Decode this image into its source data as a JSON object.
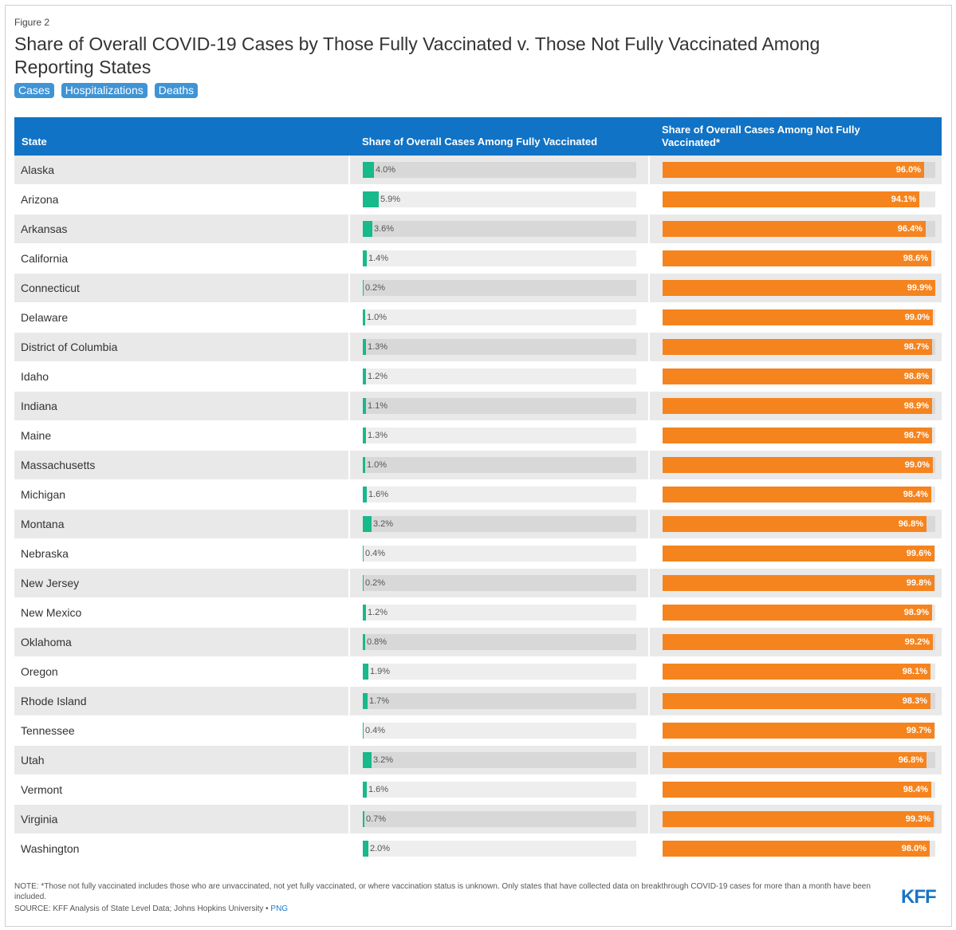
{
  "figure_label": "Figure 2",
  "title": "Share of Overall COVID-19 Cases by Those Fully Vaccinated v. Those Not Fully Vaccinated Among Reporting States",
  "tabs": [
    "Cases",
    "Hospitalizations",
    "Deaths"
  ],
  "colors": {
    "header": "#1173c5",
    "fully": "#18b98a",
    "not_fully": "#f5841f",
    "tab": "#3f94d6"
  },
  "chart_data": {
    "type": "table",
    "columns": [
      "State",
      "Share of Overall Cases Among Fully Vaccinated",
      "Share of Overall Cases Among Not Fully Vaccinated*"
    ],
    "rows": [
      {
        "state": "Alaska",
        "fully": 4.0,
        "fully_label": "4.0%",
        "not": 96.0,
        "not_label": "96.0%"
      },
      {
        "state": "Arizona",
        "fully": 5.9,
        "fully_label": "5.9%",
        "not": 94.1,
        "not_label": "94.1%"
      },
      {
        "state": "Arkansas",
        "fully": 3.6,
        "fully_label": "3.6%",
        "not": 96.4,
        "not_label": "96.4%"
      },
      {
        "state": "California",
        "fully": 1.4,
        "fully_label": "1.4%",
        "not": 98.6,
        "not_label": "98.6%"
      },
      {
        "state": "Connecticut",
        "fully": 0.2,
        "fully_label": "0.2%",
        "not": 99.9,
        "not_label": "99.9%"
      },
      {
        "state": "Delaware",
        "fully": 1.0,
        "fully_label": "1.0%",
        "not": 99.0,
        "not_label": "99.0%"
      },
      {
        "state": "District of Columbia",
        "fully": 1.3,
        "fully_label": "1.3%",
        "not": 98.7,
        "not_label": "98.7%"
      },
      {
        "state": "Idaho",
        "fully": 1.2,
        "fully_label": "1.2%",
        "not": 98.8,
        "not_label": "98.8%"
      },
      {
        "state": "Indiana",
        "fully": 1.1,
        "fully_label": "1.1%",
        "not": 98.9,
        "not_label": "98.9%"
      },
      {
        "state": "Maine",
        "fully": 1.3,
        "fully_label": "1.3%",
        "not": 98.7,
        "not_label": "98.7%"
      },
      {
        "state": "Massachusetts",
        "fully": 1.0,
        "fully_label": "1.0%",
        "not": 99.0,
        "not_label": "99.0%"
      },
      {
        "state": "Michigan",
        "fully": 1.6,
        "fully_label": "1.6%",
        "not": 98.4,
        "not_label": "98.4%"
      },
      {
        "state": "Montana",
        "fully": 3.2,
        "fully_label": "3.2%",
        "not": 96.8,
        "not_label": "96.8%"
      },
      {
        "state": "Nebraska",
        "fully": 0.4,
        "fully_label": "0.4%",
        "not": 99.6,
        "not_label": "99.6%"
      },
      {
        "state": "New Jersey",
        "fully": 0.2,
        "fully_label": "0.2%",
        "not": 99.8,
        "not_label": "99.8%"
      },
      {
        "state": "New Mexico",
        "fully": 1.2,
        "fully_label": "1.2%",
        "not": 98.9,
        "not_label": "98.9%"
      },
      {
        "state": "Oklahoma",
        "fully": 0.8,
        "fully_label": "0.8%",
        "not": 99.2,
        "not_label": "99.2%"
      },
      {
        "state": "Oregon",
        "fully": 1.9,
        "fully_label": "1.9%",
        "not": 98.1,
        "not_label": "98.1%"
      },
      {
        "state": "Rhode Island",
        "fully": 1.7,
        "fully_label": "1.7%",
        "not": 98.3,
        "not_label": "98.3%"
      },
      {
        "state": "Tennessee",
        "fully": 0.4,
        "fully_label": "0.4%",
        "not": 99.7,
        "not_label": "99.7%"
      },
      {
        "state": "Utah",
        "fully": 3.2,
        "fully_label": "3.2%",
        "not": 96.8,
        "not_label": "96.8%"
      },
      {
        "state": "Vermont",
        "fully": 1.6,
        "fully_label": "1.6%",
        "not": 98.4,
        "not_label": "98.4%"
      },
      {
        "state": "Virginia",
        "fully": 0.7,
        "fully_label": "0.7%",
        "not": 99.3,
        "not_label": "99.3%"
      },
      {
        "state": "Washington",
        "fully": 2.0,
        "fully_label": "2.0%",
        "not": 98.0,
        "not_label": "98.0%"
      }
    ]
  },
  "note": "NOTE: *Those not fully vaccinated includes those who are unvaccinated, not yet fully vaccinated, or where vaccination status is unknown. Only states that have collected data on breakthrough COVID-19 cases for more than a month have been included.",
  "source_prefix": "SOURCE: KFF Analysis of State Level Data; Johns Hopkins University • ",
  "source_link": "PNG",
  "logo": "KFF"
}
